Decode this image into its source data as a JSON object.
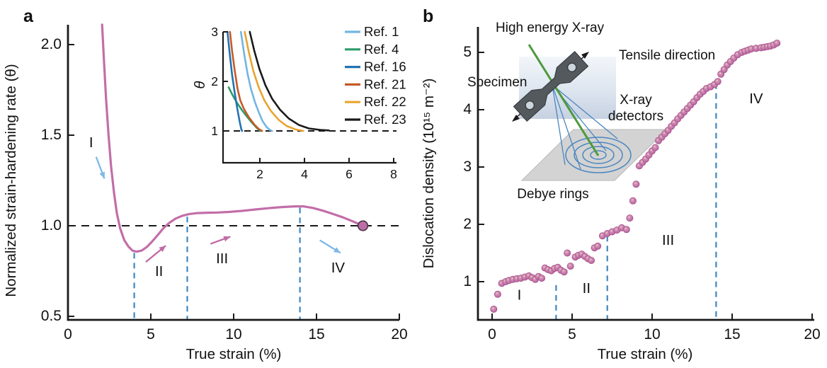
{
  "figure": {
    "panel_a_label": "a",
    "panel_b_label": "b"
  },
  "panel_a": {
    "xlabel": "True strain (%)",
    "ylabel": "Normalized strain-hardening rate (θ)"
  },
  "panel_b": {
    "xlabel": "True strain (%)",
    "ylabel": "Dislocation density (10¹⁵ m⁻²)"
  },
  "inset": {
    "ylabel": "θ"
  },
  "schematic": {
    "labels": {
      "beam": "High energy X-ray",
      "tensile": "Tensile direction",
      "specimen": "Specimen",
      "detectors_line1": "X-ray",
      "detectors_line2": "detectors",
      "rings": "Debye rings"
    }
  },
  "colors": {
    "curve_pink": "#c26ea8",
    "point_pink": "#c77fae",
    "dashed_blue": "#3f86c0",
    "arrow_blue": "#7db8e8",
    "arrow_pink": "#c06ba6",
    "beam_green": "#4e9a3c",
    "ring_blue": "#4a86c0",
    "axis_black": "#1a1a1a"
  },
  "chart_data": [
    {
      "id": "panel_a_main",
      "type": "line",
      "xlabel": "True strain (%)",
      "ylabel": "Normalized strain-hardening rate (θ)",
      "xlim": [
        0,
        20
      ],
      "ylim": [
        0.48,
        2.11
      ],
      "xticks": [
        0,
        5,
        10,
        15,
        20
      ],
      "yticks": [
        0.5,
        1.0,
        1.5,
        2.0
      ],
      "ytick_labels": [
        "0.5",
        "1.0",
        "1.5",
        "2.0"
      ],
      "grid": false,
      "line_color": "#c26ea8",
      "points": [
        [
          2.06,
          2.11
        ],
        [
          2.18,
          1.9
        ],
        [
          2.3,
          1.7
        ],
        [
          2.45,
          1.5
        ],
        [
          2.6,
          1.33
        ],
        [
          2.78,
          1.18
        ],
        [
          2.95,
          1.07
        ],
        [
          3.15,
          0.985
        ],
        [
          3.4,
          0.92
        ],
        [
          3.65,
          0.885
        ],
        [
          3.9,
          0.862
        ],
        [
          4.15,
          0.857
        ],
        [
          4.45,
          0.863
        ],
        [
          4.75,
          0.882
        ],
        [
          5.05,
          0.91
        ],
        [
          5.4,
          0.947
        ],
        [
          5.75,
          0.985
        ],
        [
          6.1,
          1.015
        ],
        [
          6.5,
          1.04
        ],
        [
          6.9,
          1.055
        ],
        [
          7.3,
          1.064
        ],
        [
          7.8,
          1.07
        ],
        [
          8.4,
          1.072
        ],
        [
          9.0,
          1.073
        ],
        [
          9.7,
          1.076
        ],
        [
          10.5,
          1.082
        ],
        [
          11.3,
          1.09
        ],
        [
          12.1,
          1.097
        ],
        [
          12.9,
          1.103
        ],
        [
          13.7,
          1.107
        ],
        [
          14.2,
          1.107
        ],
        [
          14.8,
          1.098
        ],
        [
          15.4,
          1.083
        ],
        [
          16.0,
          1.065
        ],
        [
          16.6,
          1.046
        ],
        [
          17.2,
          1.024
        ],
        [
          17.8,
          1.0
        ]
      ],
      "end_marker": [
        17.8,
        1.0
      ],
      "hline_dashed_y": 1.0,
      "vlines_dashed": [
        {
          "x": 4.0,
          "y_top": 0.85
        },
        {
          "x": 7.2,
          "y_top": 1.05
        },
        {
          "x": 14.0,
          "y_top": 1.1
        }
      ],
      "stage_labels": [
        {
          "text": "I",
          "x": 1.4,
          "y": 1.46
        },
        {
          "text": "II",
          "x": 5.5,
          "y": 0.75
        },
        {
          "text": "III",
          "x": 9.3,
          "y": 0.82
        },
        {
          "text": "IV",
          "x": 16.3,
          "y": 0.77
        }
      ],
      "arrows": [
        {
          "from": [
            1.7,
            1.38
          ],
          "to": [
            2.2,
            1.26
          ],
          "color": "blue"
        },
        {
          "from": [
            4.7,
            0.8
          ],
          "to": [
            5.9,
            0.89
          ],
          "color": "pink"
        },
        {
          "from": [
            8.6,
            0.9
          ],
          "to": [
            9.8,
            0.94
          ],
          "color": "pink"
        },
        {
          "from": [
            15.2,
            0.92
          ],
          "to": [
            16.45,
            0.85
          ],
          "color": "blue"
        }
      ]
    },
    {
      "id": "panel_a_inset",
      "type": "line",
      "ylabel": "θ",
      "xlim": [
        0.3,
        8.2
      ],
      "ylim": [
        0.36,
        3.0
      ],
      "xticks": [
        2,
        4,
        6,
        8
      ],
      "yticks": [
        1,
        2,
        3
      ],
      "grid": false,
      "hline_dashed_y": 1.0,
      "legend_position": "right",
      "series": [
        {
          "name": "Ref. 1",
          "color": "#74b5e2",
          "points": [
            [
              1.15,
              3.0
            ],
            [
              1.3,
              2.55
            ],
            [
              1.45,
              2.15
            ],
            [
              1.6,
              1.85
            ],
            [
              1.78,
              1.58
            ],
            [
              1.95,
              1.38
            ],
            [
              2.12,
              1.2
            ],
            [
              2.3,
              1.08
            ],
            [
              2.45,
              1.02
            ],
            [
              2.55,
              1.0
            ]
          ]
        },
        {
          "name": "Ref. 4",
          "color": "#2d9c68",
          "points": [
            [
              0.6,
              1.88
            ],
            [
              0.78,
              1.72
            ],
            [
              0.97,
              1.57
            ],
            [
              1.18,
              1.43
            ],
            [
              1.4,
              1.3
            ],
            [
              1.62,
              1.18
            ],
            [
              1.82,
              1.08
            ],
            [
              1.98,
              1.01
            ],
            [
              2.05,
              1.0
            ]
          ]
        },
        {
          "name": "Ref. 16",
          "color": "#2373b4",
          "points": [
            [
              0.55,
              3.0
            ],
            [
              0.65,
              2.55
            ],
            [
              0.76,
              2.12
            ],
            [
              0.88,
              1.75
            ],
            [
              1.0,
              1.42
            ],
            [
              1.1,
              1.18
            ],
            [
              1.17,
              1.03
            ],
            [
              1.2,
              1.0
            ]
          ]
        },
        {
          "name": "Ref. 21",
          "color": "#c65a28",
          "points": [
            [
              0.66,
              3.0
            ],
            [
              0.76,
              2.6
            ],
            [
              0.88,
              2.2
            ],
            [
              1.0,
              1.85
            ],
            [
              1.12,
              1.62
            ],
            [
              1.28,
              1.45
            ],
            [
              1.5,
              1.28
            ],
            [
              1.75,
              1.13
            ],
            [
              1.95,
              1.04
            ],
            [
              2.1,
              1.0
            ]
          ]
        },
        {
          "name": "Ref. 22",
          "color": "#e9a42e",
          "points": [
            [
              1.32,
              3.0
            ],
            [
              1.5,
              2.6
            ],
            [
              1.7,
              2.22
            ],
            [
              1.95,
              1.88
            ],
            [
              2.2,
              1.62
            ],
            [
              2.5,
              1.4
            ],
            [
              2.85,
              1.22
            ],
            [
              3.2,
              1.1
            ],
            [
              3.6,
              1.03
            ],
            [
              3.95,
              1.0
            ]
          ]
        },
        {
          "name": "Ref. 23",
          "color": "#1a1a1a",
          "points": [
            [
              1.55,
              3.0
            ],
            [
              1.75,
              2.62
            ],
            [
              1.98,
              2.25
            ],
            [
              2.25,
              1.92
            ],
            [
              2.55,
              1.65
            ],
            [
              2.9,
              1.43
            ],
            [
              3.3,
              1.25
            ],
            [
              3.75,
              1.12
            ],
            [
              4.2,
              1.05
            ],
            [
              4.7,
              1.02
            ],
            [
              5.1,
              1.01
            ]
          ]
        }
      ]
    },
    {
      "id": "panel_b",
      "type": "scatter",
      "xlabel": "True strain (%)",
      "ylabel": "Dislocation density (10¹⁵ m⁻²)",
      "xlim": [
        -0.9,
        20.1
      ],
      "ylim": [
        0.33,
        5.44
      ],
      "xticks": [
        0,
        5,
        10,
        15,
        20
      ],
      "yticks": [
        1,
        2,
        3,
        4,
        5
      ],
      "grid": false,
      "point_color": "#c77fae",
      "points": [
        [
          0.1,
          0.52
        ],
        [
          0.35,
          0.78
        ],
        [
          0.6,
          0.97
        ],
        [
          0.85,
          1.0
        ],
        [
          1.05,
          1.02
        ],
        [
          1.3,
          1.04
        ],
        [
          1.55,
          1.05
        ],
        [
          1.8,
          1.06
        ],
        [
          2.05,
          1.08
        ],
        [
          2.3,
          1.1
        ],
        [
          2.5,
          1.07
        ],
        [
          2.7,
          1.04
        ],
        [
          2.9,
          1.09
        ],
        [
          3.1,
          1.06
        ],
        [
          3.3,
          1.24
        ],
        [
          3.5,
          1.21
        ],
        [
          3.7,
          1.19
        ],
        [
          3.9,
          1.23
        ],
        [
          4.1,
          1.25
        ],
        [
          4.3,
          1.2
        ],
        [
          4.5,
          1.17
        ],
        [
          4.7,
          1.5
        ],
        [
          4.9,
          1.27
        ],
        [
          5.2,
          1.43
        ],
        [
          5.4,
          1.46
        ],
        [
          5.6,
          1.48
        ],
        [
          5.8,
          1.44
        ],
        [
          6.0,
          1.4
        ],
        [
          6.2,
          1.37
        ],
        [
          6.4,
          1.59
        ],
        [
          6.6,
          1.62
        ],
        [
          6.9,
          1.8
        ],
        [
          7.2,
          1.84
        ],
        [
          7.5,
          1.87
        ],
        [
          7.8,
          1.9
        ],
        [
          8.1,
          1.94
        ],
        [
          8.4,
          1.91
        ],
        [
          8.6,
          2.11
        ],
        [
          8.8,
          2.41
        ],
        [
          9.0,
          2.7
        ],
        [
          9.2,
          3.02
        ],
        [
          9.4,
          3.08
        ],
        [
          9.6,
          3.14
        ],
        [
          9.8,
          3.21
        ],
        [
          10.0,
          3.28
        ],
        [
          10.2,
          3.34
        ],
        [
          10.4,
          3.46
        ],
        [
          10.6,
          3.52
        ],
        [
          10.8,
          3.58
        ],
        [
          11.0,
          3.64
        ],
        [
          11.2,
          3.71
        ],
        [
          11.4,
          3.77
        ],
        [
          11.6,
          3.84
        ],
        [
          11.8,
          3.9
        ],
        [
          12.0,
          3.96
        ],
        [
          12.2,
          4.02
        ],
        [
          12.4,
          4.08
        ],
        [
          12.6,
          4.14
        ],
        [
          12.8,
          4.21
        ],
        [
          13.0,
          4.27
        ],
        [
          13.2,
          4.32
        ],
        [
          13.4,
          4.37
        ],
        [
          13.65,
          4.4
        ],
        [
          13.9,
          4.44
        ],
        [
          14.1,
          4.49
        ],
        [
          14.3,
          4.62
        ],
        [
          14.5,
          4.7
        ],
        [
          14.7,
          4.78
        ],
        [
          14.9,
          4.84
        ],
        [
          15.1,
          4.9
        ],
        [
          15.35,
          4.96
        ],
        [
          15.6,
          5.0
        ],
        [
          15.8,
          5.02
        ],
        [
          16.0,
          5.04
        ],
        [
          16.2,
          5.06
        ],
        [
          16.5,
          5.07
        ],
        [
          16.8,
          5.08
        ],
        [
          17.0,
          5.09
        ],
        [
          17.2,
          5.1
        ],
        [
          17.4,
          5.11
        ],
        [
          17.6,
          5.13
        ],
        [
          17.8,
          5.16
        ]
      ],
      "vlines_dashed": [
        {
          "x": 4.0,
          "y_top": 0.94
        },
        {
          "x": 7.2,
          "y_top": 1.8
        },
        {
          "x": 14.0,
          "y_top": 4.46
        }
      ],
      "stage_labels": [
        {
          "text": "I",
          "x": 1.7,
          "y": 0.77
        },
        {
          "text": "II",
          "x": 5.9,
          "y": 0.89
        },
        {
          "text": "III",
          "x": 11.0,
          "y": 1.73
        },
        {
          "text": "IV",
          "x": 16.5,
          "y": 4.2
        }
      ]
    }
  ]
}
